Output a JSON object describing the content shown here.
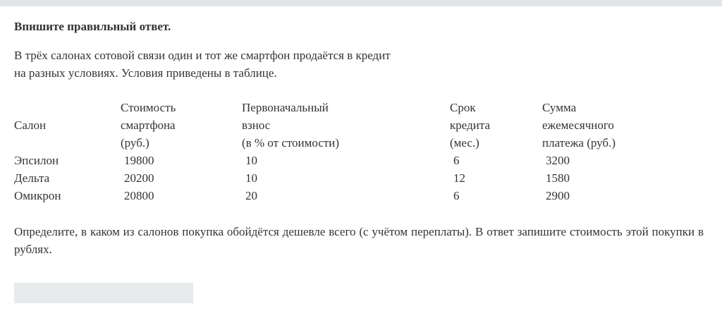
{
  "title": "Впишите правильный ответ.",
  "intro": [
    "В трёх салонах сотовой связи один и тот же смартфон продаётся в кредит",
    "на разных условиях. Условия приведены в таблице."
  ],
  "table": {
    "headers": [
      [
        "Салон"
      ],
      [
        "Стоимость",
        "смартфона",
        "(руб.)"
      ],
      [
        "Первоначальный",
        "взнос",
        "(в % от стоимости)"
      ],
      [
        "Срок",
        "кредита",
        "(мес.)"
      ],
      [
        "Сумма",
        "ежемесячного",
        "платежа (руб.)"
      ]
    ],
    "rows": [
      [
        "Эпсилон",
        "19800",
        "10",
        "6",
        "3200"
      ],
      [
        "Дельта",
        "20200",
        "10",
        "12",
        "1580"
      ],
      [
        "Омикрон",
        "20800",
        "20",
        "6",
        "2900"
      ]
    ]
  },
  "question": "Определите, в каком из салонов покупка обойдётся дешевле всего (с учётом переплаты). В ответ запишите стоимость этой покупки в рублях.",
  "answer": {
    "value": "",
    "placeholder": ""
  }
}
